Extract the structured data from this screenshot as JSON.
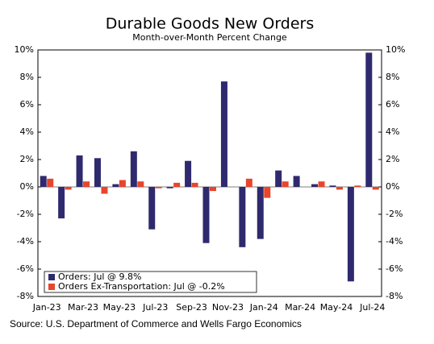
{
  "chart_data": {
    "type": "bar",
    "title": "Durable Goods New Orders",
    "subtitle": "Month-over-Month Percent Change",
    "source": "Source: U.S. Department of Commerce and Wells Fargo Economics",
    "categories": [
      "Jan-23",
      null,
      "Mar-23",
      null,
      "May-23",
      null,
      "Jul-23",
      null,
      "Sep-23",
      null,
      "Nov-23",
      null,
      "Jan-24",
      null,
      "Mar-24",
      null,
      "May-24",
      null,
      "Jul-24"
    ],
    "series": [
      {
        "name": "Orders: Jul @ 9.8%",
        "color": "#2f2a6e",
        "values": [
          0.8,
          -2.3,
          2.3,
          2.1,
          0.2,
          2.6,
          -3.1,
          -0.1,
          1.9,
          -4.1,
          7.7,
          -4.4,
          -3.8,
          1.2,
          0.8,
          0.2,
          0.1,
          -6.9,
          9.8
        ]
      },
      {
        "name": "Orders Ex-Transportation: Jul @ -0.2%",
        "color": "#e8452c",
        "values": [
          0.6,
          -0.2,
          0.4,
          -0.5,
          0.5,
          0.4,
          -0.1,
          0.3,
          0.3,
          -0.3,
          0.0,
          0.6,
          -0.8,
          0.4,
          0.0,
          0.4,
          -0.2,
          0.1,
          -0.2
        ]
      }
    ],
    "ylim": [
      -8,
      10
    ],
    "yticks": [
      {
        "value": -8,
        "label": "-8%"
      },
      {
        "value": -6,
        "label": "-6%"
      },
      {
        "value": -4,
        "label": "-4%"
      },
      {
        "value": -2,
        "label": "-2%"
      },
      {
        "value": 0,
        "label": "0%"
      },
      {
        "value": 2,
        "label": "2%"
      },
      {
        "value": 4,
        "label": "4%"
      },
      {
        "value": 6,
        "label": "6%"
      },
      {
        "value": 8,
        "label": "8%"
      },
      {
        "value": 10,
        "label": "10%"
      }
    ],
    "y2lim": [
      -8,
      10
    ],
    "y2ticks": [
      {
        "value": -8,
        "label": "-8%"
      },
      {
        "value": -6,
        "label": "-6%"
      },
      {
        "value": -4,
        "label": "-4%"
      },
      {
        "value": -2,
        "label": "-2%"
      },
      {
        "value": 0,
        "label": "0%"
      },
      {
        "value": 2,
        "label": "2%"
      },
      {
        "value": 4,
        "label": "4%"
      },
      {
        "value": 6,
        "label": "6%"
      },
      {
        "value": 8,
        "label": "8%"
      },
      {
        "value": 10,
        "label": "10%"
      }
    ],
    "legend": "lower left"
  }
}
